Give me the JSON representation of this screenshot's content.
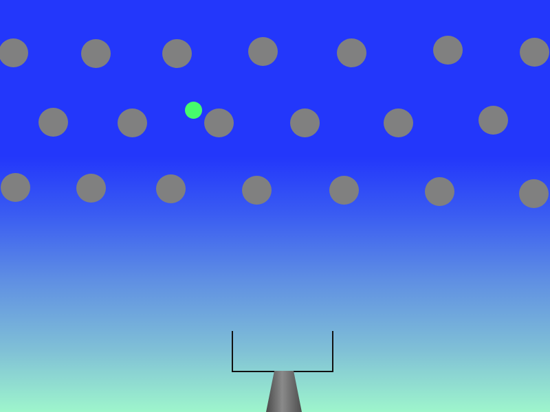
{
  "scene": {
    "background_top": "#2337fb",
    "background_bottom": "#9ef5cc"
  },
  "pegs": {
    "color": "#808080",
    "rows": [
      {
        "row": 1,
        "count": 7
      },
      {
        "row": 2,
        "count": 6
      },
      {
        "row": 3,
        "count": 7
      }
    ]
  },
  "ball": {
    "color": "#46fb6c"
  },
  "cannon": {
    "color": "#6e6e6e",
    "icon": "cannon-icon"
  },
  "bucket": {
    "color": "#111111"
  }
}
